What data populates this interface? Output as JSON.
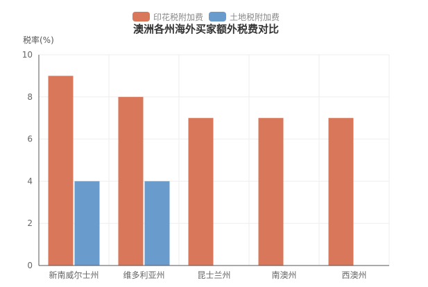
{
  "chart_data": {
    "type": "bar",
    "title": "澳洲各州海外买家额外税费对比",
    "xlabel": "",
    "ylabel": "税率(%)",
    "ylim": [
      0,
      10
    ],
    "yticks": [
      0,
      2,
      4,
      6,
      8,
      10
    ],
    "categories": [
      "新南威尔士州",
      "维多利亚州",
      "昆士兰州",
      "南澳州",
      "西澳州"
    ],
    "series": [
      {
        "name": "印花税附加费",
        "color": "#d9775a",
        "values": [
          9,
          8,
          7,
          7,
          7
        ]
      },
      {
        "name": "土地税附加费",
        "color": "#6a9bcd",
        "values": [
          4,
          4,
          0,
          0,
          0
        ]
      }
    ],
    "legend_position": "top",
    "grid": true
  }
}
